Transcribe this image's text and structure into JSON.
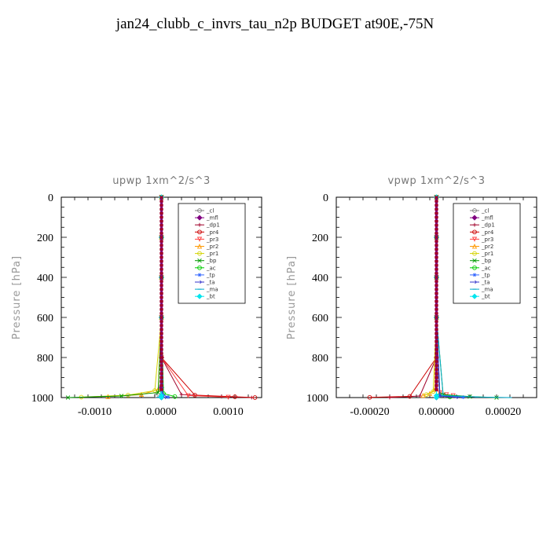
{
  "title": "jan24_clubb_c_invrs_tau_n2p  BUDGET at90E,-75N",
  "chart_data": [
    {
      "type": "line",
      "title": "upwp   1xm^2/s^3",
      "ylabel": "Pressure [hPa]",
      "xlabel": "",
      "xlim": [
        -0.0015,
        0.0015
      ],
      "ylim": [
        1000,
        0
      ],
      "y_inverted": true,
      "xticks": [
        -0.001,
        0.0,
        0.001
      ],
      "xtick_labels": [
        "-0.0010",
        "0.0000",
        "0.0010"
      ],
      "yticks": [
        0,
        200,
        400,
        600,
        800,
        1000
      ],
      "ytick_labels": [
        "0",
        "200",
        "400",
        "600",
        "800",
        "1000"
      ],
      "legend_position": "top-right",
      "series": [
        {
          "name": "_cl",
          "color": "#808080",
          "marker": "circle",
          "x": [
            0,
            0,
            0,
            0,
            0,
            -2e-05,
            -8e-05
          ],
          "y": [
            0,
            200,
            400,
            600,
            800,
            950,
            990
          ]
        },
        {
          "name": "_mfl",
          "color": "#800080",
          "marker": "diamond",
          "x": [
            0,
            0,
            0,
            0,
            0,
            0,
            0.0
          ],
          "y": [
            0,
            200,
            400,
            600,
            800,
            950,
            1000
          ]
        },
        {
          "name": "_dp1",
          "color": "#a0002a",
          "marker": "plus",
          "x": [
            0,
            0,
            0,
            0,
            0.0,
            0.0003,
            0.0009,
            0.00135
          ],
          "y": [
            0,
            200,
            400,
            600,
            800,
            985,
            995,
            1000
          ]
        },
        {
          "name": "_pr4",
          "color": "#cc0000",
          "marker": "circle",
          "x": [
            0,
            0,
            0,
            0,
            0.0,
            0.0005,
            0.0011,
            0.0014
          ],
          "y": [
            0,
            200,
            400,
            600,
            800,
            988,
            996,
            1000
          ]
        },
        {
          "name": "_pr3",
          "color": "#ff4040",
          "marker": "triangle-down",
          "x": [
            0,
            0,
            0,
            0,
            0.0,
            0.0004,
            0.001
          ],
          "y": [
            0,
            200,
            400,
            600,
            800,
            990,
            998
          ]
        },
        {
          "name": "_pr2",
          "color": "#ff9900",
          "marker": "triangle-up",
          "x": [
            0,
            0,
            0,
            0,
            -5e-05,
            -0.0003,
            -0.0008
          ],
          "y": [
            0,
            200,
            400,
            600,
            960,
            985,
            995
          ]
        },
        {
          "name": "_pr1",
          "color": "#d4d400",
          "marker": "circle",
          "x": [
            0,
            0,
            0,
            0,
            -0.0001,
            -0.0005,
            -0.0012
          ],
          "y": [
            0,
            200,
            400,
            600,
            965,
            988,
            998
          ]
        },
        {
          "name": "_bp",
          "color": "#009900",
          "marker": "cross",
          "x": [
            0,
            0,
            0,
            0,
            -5e-05,
            -0.0006,
            -0.0014
          ],
          "y": [
            0,
            200,
            400,
            600,
            975,
            992,
            1000
          ]
        },
        {
          "name": "_ac",
          "color": "#00cc00",
          "marker": "circle",
          "x": [
            0,
            0,
            0,
            0,
            3e-05,
            0.0002
          ],
          "y": [
            0,
            200,
            400,
            600,
            980,
            995
          ]
        },
        {
          "name": "_tp",
          "color": "#3366ff",
          "marker": "star",
          "x": [
            0,
            0,
            0,
            0,
            2e-05,
            0.0001
          ],
          "y": [
            0,
            200,
            400,
            600,
            985,
            998
          ]
        },
        {
          "name": "_ta",
          "color": "#3333cc",
          "marker": "arrow",
          "x": [
            0,
            0,
            0,
            0,
            1e-05,
            5e-05
          ],
          "y": [
            0,
            200,
            400,
            600,
            990,
            999
          ]
        },
        {
          "name": "_ma",
          "color": "#00aacc",
          "marker": "dash",
          "x": [
            0,
            0,
            0,
            0,
            -1e-05,
            -5e-05
          ],
          "y": [
            0,
            200,
            400,
            600,
            990,
            999
          ]
        },
        {
          "name": "_bt",
          "color": "#00e5ee",
          "marker": "diamond",
          "x": [
            0,
            0,
            0,
            0,
            0,
            0
          ],
          "y": [
            0,
            200,
            400,
            600,
            990,
            1000
          ]
        }
      ]
    },
    {
      "type": "line",
      "title": "vpwp   1xm^2/s^3",
      "ylabel": "Pressure [hPa]",
      "xlabel": "",
      "xlim": [
        -0.0003,
        0.0003
      ],
      "ylim": [
        1000,
        0
      ],
      "y_inverted": true,
      "xticks": [
        -0.0002,
        0.0,
        0.0002
      ],
      "xtick_labels": [
        "-0.00020",
        "0.00000",
        "0.00020"
      ],
      "yticks": [
        0,
        200,
        400,
        600,
        800,
        1000
      ],
      "ytick_labels": [
        "0",
        "200",
        "400",
        "600",
        "800",
        "1000"
      ],
      "legend_position": "top-right",
      "series": [
        {
          "name": "_cl",
          "color": "#808080",
          "marker": "circle",
          "x": [
            0,
            0,
            0,
            0,
            0,
            1e-05
          ],
          "y": [
            0,
            200,
            400,
            600,
            800,
            990
          ]
        },
        {
          "name": "_mfl",
          "color": "#800080",
          "marker": "diamond",
          "x": [
            0,
            0,
            0,
            0,
            0,
            0
          ],
          "y": [
            0,
            200,
            400,
            600,
            800,
            1000
          ]
        },
        {
          "name": "_dp1",
          "color": "#a0002a",
          "marker": "plus",
          "x": [
            0,
            0,
            0,
            0,
            0.0,
            -5e-05,
            -0.00014
          ],
          "y": [
            0,
            200,
            400,
            600,
            800,
            992,
            1000
          ]
        },
        {
          "name": "_pr4",
          "color": "#cc0000",
          "marker": "circle",
          "x": [
            0,
            0,
            0,
            0,
            0.0,
            -8e-05,
            -0.0002
          ],
          "y": [
            0,
            200,
            400,
            600,
            800,
            994,
            999
          ]
        },
        {
          "name": "_pr3",
          "color": "#ff4040",
          "marker": "triangle-down",
          "x": [
            0,
            0,
            0,
            0,
            1e-05,
            3e-05,
            5e-05
          ],
          "y": [
            0,
            200,
            400,
            600,
            975,
            985,
            990
          ]
        },
        {
          "name": "_pr2",
          "color": "#ff9900",
          "marker": "triangle-up",
          "x": [
            0,
            0,
            0,
            0,
            -5e-06,
            -2e-05,
            -4e-05
          ],
          "y": [
            0,
            200,
            400,
            600,
            960,
            980,
            990
          ]
        },
        {
          "name": "_pr1",
          "color": "#d4d400",
          "marker": "circle",
          "x": [
            0,
            0,
            0,
            0,
            -1e-05,
            -3e-05
          ],
          "y": [
            0,
            200,
            400,
            600,
            970,
            985
          ]
        },
        {
          "name": "_bp",
          "color": "#009900",
          "marker": "cross",
          "x": [
            0,
            0,
            0,
            0,
            2e-05,
            0.0001,
            0.00018
          ],
          "y": [
            0,
            200,
            400,
            600,
            985,
            995,
            1000
          ]
        },
        {
          "name": "_ac",
          "color": "#00cc00",
          "marker": "circle",
          "x": [
            0,
            0,
            0,
            0,
            1e-05,
            4e-05
          ],
          "y": [
            0,
            200,
            400,
            600,
            988,
            997
          ]
        },
        {
          "name": "_tp",
          "color": "#3366ff",
          "marker": "star",
          "x": [
            0,
            0,
            0,
            0,
            1e-05,
            8e-05
          ],
          "y": [
            0,
            200,
            400,
            600,
            990,
            998
          ]
        },
        {
          "name": "_ta",
          "color": "#3333cc",
          "marker": "arrow",
          "x": [
            0,
            0,
            0,
            0,
            1e-05,
            6e-05
          ],
          "y": [
            0,
            200,
            400,
            600,
            992,
            999
          ]
        },
        {
          "name": "_ma",
          "color": "#00aacc",
          "marker": "dash",
          "x": [
            0,
            0,
            0,
            0,
            2e-05,
            0.00012,
            0.00022
          ],
          "y": [
            0,
            200,
            400,
            600,
            990,
            997,
            1000
          ]
        },
        {
          "name": "_bt",
          "color": "#00e5ee",
          "marker": "diamond",
          "x": [
            0,
            0,
            0,
            0,
            0,
            0
          ],
          "y": [
            0,
            200,
            400,
            600,
            990,
            1000
          ]
        }
      ]
    }
  ]
}
